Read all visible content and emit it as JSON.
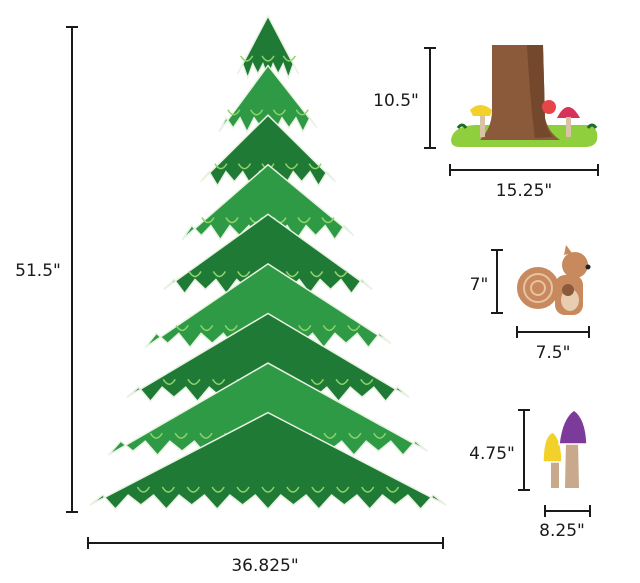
{
  "items": [
    {
      "name": "pine-tree",
      "height": "51.5\"",
      "width": "36.825\""
    },
    {
      "name": "tree-stump-with-mushrooms",
      "height": "10.5\"",
      "width": "15.25\""
    },
    {
      "name": "squirrel",
      "height": "7\"",
      "width": "7.5\""
    },
    {
      "name": "mushrooms",
      "height": "4.75\"",
      "width": "8.25\""
    }
  ],
  "colors": {
    "tree_dark": "#1f7a35",
    "tree_mid": "#2e9a45",
    "tree_light": "#8fd36b",
    "trunk": "#8a5a3a",
    "grass": "#8fce3c",
    "squirrel": "#c9895e",
    "purple_cap": "#7c3a9a",
    "yellow_cap": "#f2d22a",
    "red_cap": "#d6335a"
  }
}
